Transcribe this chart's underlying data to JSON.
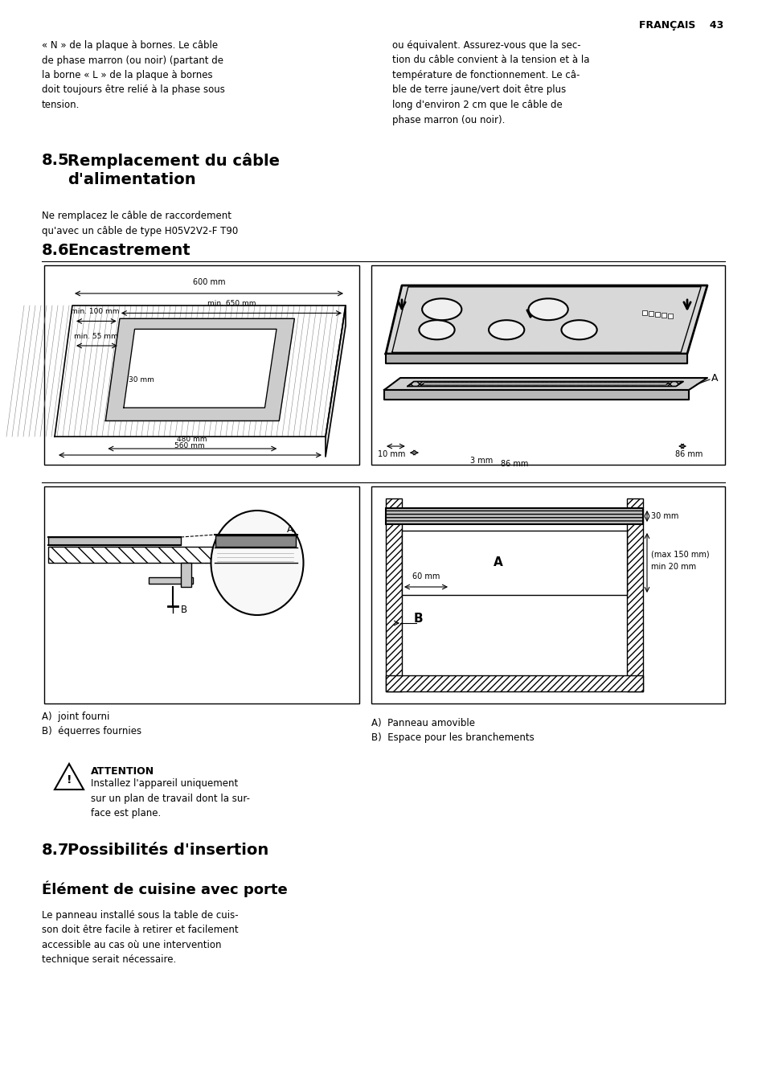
{
  "page_bg": "#ffffff",
  "header_text": "FRANÇAIS    43",
  "col1_intro": "« N » de la plaque à bornes. Le câble\nde phase marron (ou noir) (partant de\nla borne « L » de la plaque à bornes\ndoit toujours être relié à la phase sous\ntension.",
  "col2_intro": "ou équivalent. Assurez-vous que la sec-\ntion du câble convient à la tension et à la\ntempérature de fonctionnement. Le câ-\nble de terre jaune/vert doit être plus\nlong d'environ 2 cm que le câble de\nphase marron (ou noir).",
  "s85_body": "Ne remplacez le câble de raccordement\nqu'avec un câble de type H05V2V2-F T90",
  "s87_title": "Possibilités d'insertion",
  "sub_title": "Élément de cuisine avec porte",
  "sub_body": "Le panneau installé sous la table de cuis-\nson doit être facile à retirer et facilement\naccessible au cas où une intervention\ntechnique serait nécessaire.",
  "lbl_A_joint": "A)  joint fourni",
  "lbl_B_equerres": "B)  équerres fournies",
  "attention_title": "ATTENTION",
  "attention_body": "Installez l'appareil uniquement\nsur un plan de travail dont la sur-\nface est plane.",
  "lbl_A_panneau": "A)  Panneau amovible",
  "lbl_B_espace": "B)  Espace pour les branchements",
  "dim_600": "600 mm",
  "dim_100": "min. 100 mm",
  "dim_650": "min. 650 mm",
  "dim_55": "min. 55 mm",
  "dim_30": "30 mm",
  "dim_480": "480 mm",
  "dim_560": "560 mm",
  "dim_10": "10 mm",
  "dim_3": "3 mm",
  "dim_86a": "86 mm",
  "dim_86b": "86 mm",
  "dim_30b": "30 mm",
  "dim_min20": "min 20 mm",
  "dim_max150": "(max 150 mm)",
  "dim_60": "60 mm",
  "lbl_A": "A",
  "lbl_B": "B",
  "lbl_A2": "A",
  "lbl_B2": "B"
}
